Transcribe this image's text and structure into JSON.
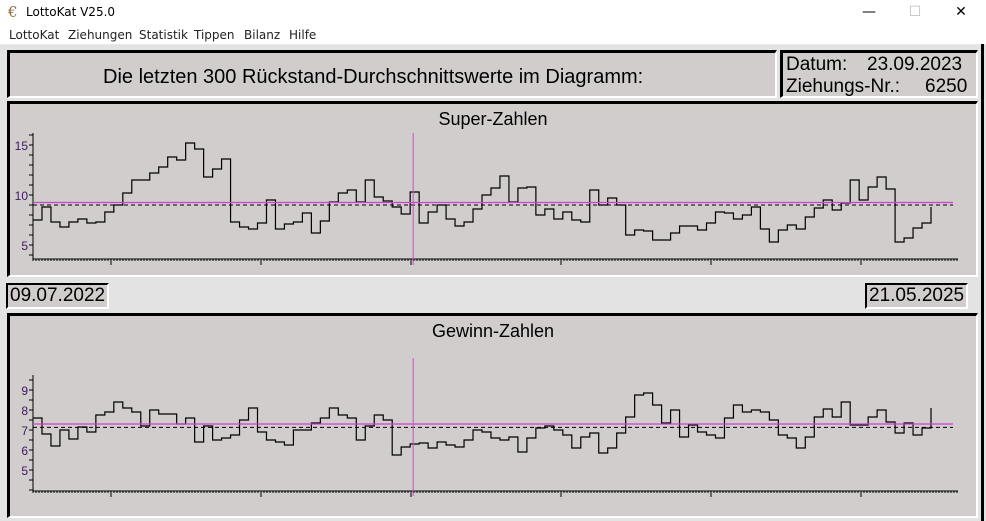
{
  "window": {
    "title": "LottoKat V25.0",
    "icon": "euro-icon",
    "controls": {
      "minimize": "—",
      "maximize": "☐",
      "close": "✕"
    }
  },
  "menu": [
    "LottoKat",
    "Ziehungen",
    "Statistik",
    "Tippen",
    "Bilanz",
    "Hilfe"
  ],
  "header": {
    "headline": "Die letzten 300 Rückstand-Durchschnittswerte im Diagramm:",
    "datum_label": "Datum:",
    "datum_value": "23.09.2023",
    "ziehung_label": "Ziehungs-Nr.:",
    "ziehung_value": "6250"
  },
  "range": {
    "start_date": "09.07.2022",
    "end_date": "21.05.2025"
  },
  "colors": {
    "panel": "#d1cdcd",
    "line": "#000000",
    "mean_line": "#d040d0",
    "marker": "#e040e0"
  },
  "chart_data": [
    {
      "type": "line",
      "step": true,
      "title": "Super-Zahlen",
      "draw_count": 300,
      "ylim": [
        3,
        16
      ],
      "yticks": [
        5,
        10,
        15
      ],
      "marker_draw_index": 127,
      "reference_lines": {
        "mean_solid": 9.25,
        "mean_dashed": 9.0
      },
      "values": [
        7.5,
        8.8,
        7.3,
        6.8,
        7.3,
        7.6,
        7.2,
        7.3,
        8.3,
        9.0,
        10.2,
        11.5,
        11.5,
        12.2,
        12.8,
        13.8,
        13.5,
        15.2,
        14.6,
        11.8,
        12.6,
        13.6,
        7.3,
        6.8,
        6.6,
        7.2,
        9.5,
        6.6,
        7.1,
        7.3,
        8.2,
        6.2,
        7.4,
        9.3,
        10.2,
        10.5,
        9.3,
        11.5,
        9.8,
        9.4,
        8.8,
        8.1,
        10.3,
        7.2,
        8.3,
        9.0,
        7.6,
        6.9,
        7.3,
        8.6,
        10.0,
        10.7,
        11.9,
        9.3,
        10.7,
        10.8,
        8.0,
        8.6,
        7.6,
        8.3,
        7.5,
        7.3,
        10.5,
        9.0,
        9.7,
        9.0,
        6.0,
        6.5,
        6.4,
        5.5,
        5.5,
        6.2,
        6.9,
        6.9,
        6.5,
        7.2,
        8.3,
        8.2,
        7.6,
        8.0,
        8.8,
        6.6,
        5.3,
        6.5,
        7.0,
        6.6,
        7.8,
        8.7,
        9.5,
        8.5,
        9.2,
        11.5,
        9.5,
        10.8,
        11.8,
        10.6,
        5.3,
        5.7,
        6.7,
        7.2,
        8.8
      ]
    },
    {
      "type": "line",
      "step": true,
      "title": "Gewinn-Zahlen",
      "draw_count": 300,
      "ylim": [
        4,
        10.5
      ],
      "yticks": [
        5,
        6,
        7,
        8,
        9
      ],
      "marker_draw_index": 127,
      "reference_lines": {
        "mean_solid": 7.3,
        "mean_dashed": 7.13
      },
      "values": [
        7.6,
        6.8,
        6.2,
        7.0,
        6.55,
        7.15,
        6.9,
        7.75,
        7.9,
        8.4,
        8.1,
        7.9,
        7.2,
        8.0,
        7.8,
        7.8,
        7.3,
        7.6,
        6.4,
        7.2,
        6.5,
        6.6,
        6.75,
        7.5,
        8.1,
        6.9,
        6.5,
        6.4,
        6.25,
        7.0,
        7.0,
        7.35,
        7.6,
        8.1,
        7.75,
        7.6,
        6.5,
        7.2,
        7.75,
        7.5,
        5.75,
        6.15,
        6.3,
        6.35,
        6.1,
        6.4,
        6.25,
        6.15,
        6.5,
        7.0,
        6.9,
        6.6,
        6.5,
        6.65,
        5.9,
        6.6,
        7.1,
        7.2,
        7.0,
        6.75,
        6.1,
        6.65,
        6.85,
        5.85,
        6.1,
        6.85,
        7.65,
        8.75,
        8.85,
        8.25,
        7.35,
        8.0,
        6.65,
        7.25,
        6.9,
        6.75,
        6.6,
        7.6,
        8.25,
        7.9,
        8.0,
        7.9,
        7.5,
        6.75,
        6.6,
        6.1,
        6.65,
        7.65,
        8.05,
        7.65,
        8.4,
        7.25,
        7.25,
        7.65,
        8.0,
        7.4,
        6.85,
        7.35,
        6.75,
        7.1,
        8.1
      ]
    }
  ]
}
